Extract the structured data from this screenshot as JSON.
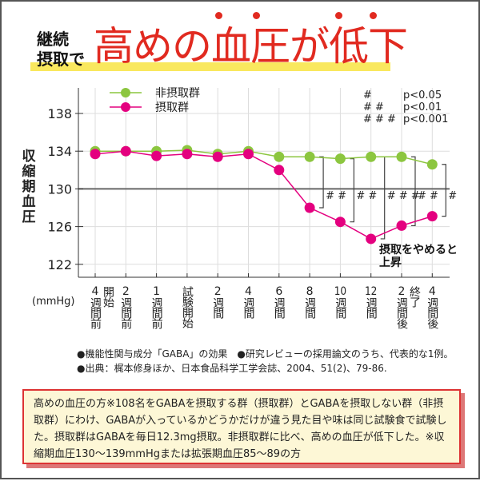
{
  "title": {
    "sub": "継続\n摂取で",
    "main": "高めの血圧が低下"
  },
  "chart_data": {
    "type": "line",
    "ylabel": "収縮期血圧",
    "unit": "(mmHg)",
    "ylim": [
      120,
      140
    ],
    "yticks": [
      122,
      126,
      130,
      134,
      138
    ],
    "categories": [
      "4週間前",
      "2週間前",
      "1週間前",
      "試験開始",
      "2週間",
      "4週間",
      "6週間",
      "8週間",
      "10週間",
      "12週間",
      "2週間後",
      "4週間後"
    ],
    "category_labels": [
      "4週間前",
      "2週間前",
      "1週間前",
      "試験開始",
      "2週間",
      "4週間",
      "6週間",
      "8週間",
      "10週間",
      "12週間",
      "2週間後",
      "4週間後"
    ],
    "annotations_top": [
      {
        "index": 0,
        "text": "開始"
      },
      {
        "index": 10,
        "text": "終了"
      }
    ],
    "series": [
      {
        "name": "非摂取群",
        "color": "#8cc63f",
        "values": [
          134,
          134,
          134,
          134.1,
          133.7,
          134,
          133.4,
          133.4,
          133.2,
          133.4,
          133.4,
          132.6
        ]
      },
      {
        "name": "摂取群",
        "color": "#e4007f",
        "values": [
          133.7,
          134,
          133.5,
          133.7,
          133.4,
          133.7,
          132,
          128,
          126.5,
          124.7,
          126.1,
          127.1
        ]
      }
    ],
    "significance": [
      {
        "index": 7,
        "mark": "##"
      },
      {
        "index": 8,
        "mark": "##"
      },
      {
        "index": 9,
        "mark": "###"
      },
      {
        "index": 10,
        "mark": "##"
      },
      {
        "index": 11,
        "mark": "#"
      }
    ],
    "sig_legend": [
      {
        "mark": "#",
        "p": "p<0.05"
      },
      {
        "mark": "##",
        "p": "p<0.01"
      },
      {
        "mark": "###",
        "p": "p<0.001"
      }
    ],
    "callout": "摂取をやめると上昇",
    "grid": true,
    "legend": "top-left"
  },
  "notes": [
    "●機能性関与成分「GABA」の効果　●研究レビューの採用論文のうち、代表的な1例。",
    "●出典：梶本修身ほか、日本食品科学工学会誌、2004、51(2)、79-86."
  ],
  "description": "高めの血圧の方※108名をGABAを摂取する群（摂取群）とGABAを摂取しない群（非摂取群）にわけ、GABAが入っているかどうかだけが違う見た目や味は同じ試験食で試験した。摂取群はGABAを毎日12.3mg摂取。非摂取群に比べ、高めの血圧が低下した。※収縮期血圧130〜139mmHgまたは拡張期血圧85〜89の方"
}
